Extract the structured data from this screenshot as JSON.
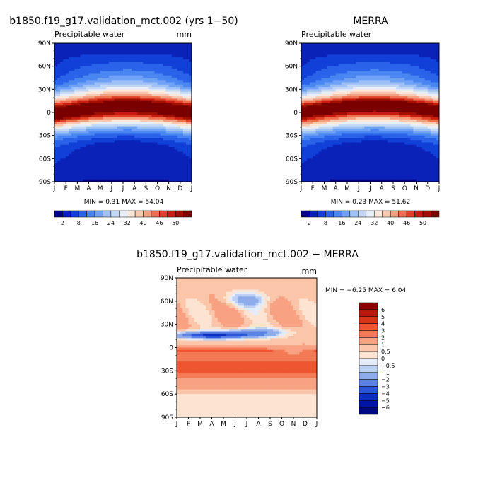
{
  "chart_data": [
    {
      "type": "heatmap",
      "title": "b1850.f19_g17.validation_mct.002 (yrs 1−50)",
      "subtitle": "Precipitable water",
      "units": "mm",
      "x_tick_labels": [
        "J",
        "F",
        "M",
        "A",
        "M",
        "J",
        "J",
        "A",
        "S",
        "O",
        "N",
        "D",
        "J"
      ],
      "y_tick_labels": [
        "90N",
        "60N",
        "30N",
        "0",
        "30S",
        "60S",
        "90S"
      ],
      "y_range": [
        90,
        -90
      ],
      "stats": "MIN =    0.31 MAX =   54.04",
      "min": 0.31,
      "max": 54.04,
      "colorbar_labels": [
        "2",
        "8",
        "16",
        "24",
        "32",
        "40",
        "46",
        "50"
      ],
      "colorbar_colors": [
        "#00008a",
        "#0a22b8",
        "#1140d8",
        "#2a62ea",
        "#4a86f2",
        "#6fa2f6",
        "#9ec0f8",
        "#c4d8f8",
        "#e8eef8",
        "#fbe8dc",
        "#f8c8b0",
        "#f4a080",
        "#ee7050",
        "#e04028",
        "#c81c10",
        "#a01000",
        "#7a0000"
      ],
      "colorbar_bounds": [
        2,
        5,
        8,
        12,
        16,
        20,
        24,
        28,
        32,
        36,
        40,
        43,
        46,
        48,
        50,
        52
      ],
      "layout_slot": "top-left"
    },
    {
      "type": "heatmap",
      "title": "MERRA",
      "subtitle": "Precipitable water",
      "units": "",
      "x_tick_labels": [
        "J",
        "F",
        "M",
        "A",
        "M",
        "J",
        "J",
        "A",
        "S",
        "O",
        "N",
        "D",
        "J"
      ],
      "y_tick_labels": [
        "90N",
        "60N",
        "30N",
        "0",
        "30S",
        "60S",
        "90S"
      ],
      "y_range": [
        90,
        -90
      ],
      "stats": "MIN =    0.23 MAX =   51.62",
      "min": 0.23,
      "max": 51.62,
      "colorbar_labels": [
        "2",
        "8",
        "16",
        "24",
        "32",
        "40",
        "46",
        "50"
      ],
      "colorbar_colors": [
        "#00008a",
        "#0a22b8",
        "#1140d8",
        "#2a62ea",
        "#4a86f2",
        "#6fa2f6",
        "#9ec0f8",
        "#c4d8f8",
        "#e8eef8",
        "#fbe8dc",
        "#f8c8b0",
        "#f4a080",
        "#ee7050",
        "#e04028",
        "#c81c10",
        "#a01000",
        "#7a0000"
      ],
      "colorbar_bounds": [
        2,
        5,
        8,
        12,
        16,
        20,
        24,
        28,
        32,
        36,
        40,
        43,
        46,
        48,
        50,
        52
      ],
      "layout_slot": "top-right"
    },
    {
      "type": "heatmap",
      "title": "b1850.f19_g17.validation_mct.002 − MERRA",
      "subtitle": "Precipitable water",
      "units": "mm",
      "x_tick_labels": [
        "J",
        "F",
        "M",
        "A",
        "M",
        "J",
        "J",
        "A",
        "S",
        "O",
        "N",
        "D",
        "J"
      ],
      "y_tick_labels": [
        "90N",
        "60N",
        "30N",
        "0",
        "30S",
        "60S",
        "90S"
      ],
      "y_range": [
        90,
        -90
      ],
      "stats": "MIN =   −6.25 MAX =    6.04",
      "min": -6.25,
      "max": 6.04,
      "colorbar_labels": [
        "6",
        "5",
        "4",
        "3",
        "2",
        "1",
        "0.5",
        "0",
        "−0.5",
        "−1",
        "−2",
        "−3",
        "−4",
        "−5",
        "−6"
      ],
      "colorbar_colors": [
        "#8a0000",
        "#b81a0a",
        "#d83418",
        "#ee5530",
        "#f47a55",
        "#f8a283",
        "#fbc6aa",
        "#fde4d2",
        "#e4ecfa",
        "#bcd0f4",
        "#8eacec",
        "#5c82e4",
        "#2a56d8",
        "#0a30c0",
        "#0016a0",
        "#000a80"
      ],
      "colorbar_bounds": [
        -6,
        -5,
        -4,
        -3,
        -2,
        -1,
        -0.5,
        0,
        0.5,
        1,
        2,
        3,
        4,
        5,
        6
      ],
      "layout_slot": "bottom"
    }
  ]
}
